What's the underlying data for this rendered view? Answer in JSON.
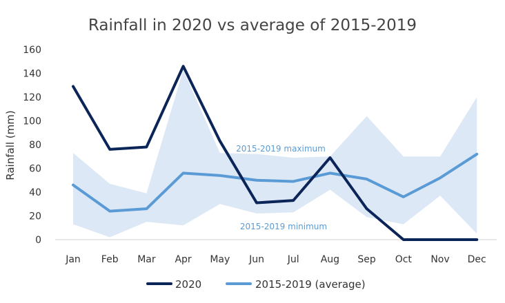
{
  "chart_data": {
    "type": "line",
    "title": "Rainfall in 2020 vs average of 2015-2019",
    "xlabel": "",
    "ylabel": "Rainfall (mm)",
    "ylim": [
      0,
      160
    ],
    "yticks": [
      0,
      20,
      40,
      60,
      80,
      100,
      120,
      140,
      160
    ],
    "grid": false,
    "legend_position": "bottom",
    "categories": [
      "Jan",
      "Feb",
      "Mar",
      "Apr",
      "May",
      "Jun",
      "Jul",
      "Aug",
      "Sep",
      "Oct",
      "Nov",
      "Dec"
    ],
    "series": [
      {
        "name": "2020",
        "color": "#0b2559",
        "values": [
          129,
          76,
          78,
          146,
          83,
          31,
          33,
          69,
          26,
          0,
          0,
          0
        ]
      },
      {
        "name": "2015-2019 (average)",
        "color": "#5b9bd5",
        "values": [
          46,
          24,
          26,
          56,
          54,
          50,
          49,
          56,
          51,
          36,
          52,
          72
        ]
      }
    ],
    "band": {
      "color": "#dce8f6",
      "max": [
        73,
        47,
        39,
        143,
        73,
        72,
        69,
        70,
        104,
        70,
        70,
        120
      ],
      "min": [
        13,
        2,
        15,
        12,
        30,
        22,
        23,
        42,
        19,
        13,
        37,
        5
      ]
    },
    "annotations": {
      "max_label": "2015-2019 maximum",
      "min_label": "2015-2019 minimum",
      "color": "#5b9bd5"
    }
  }
}
